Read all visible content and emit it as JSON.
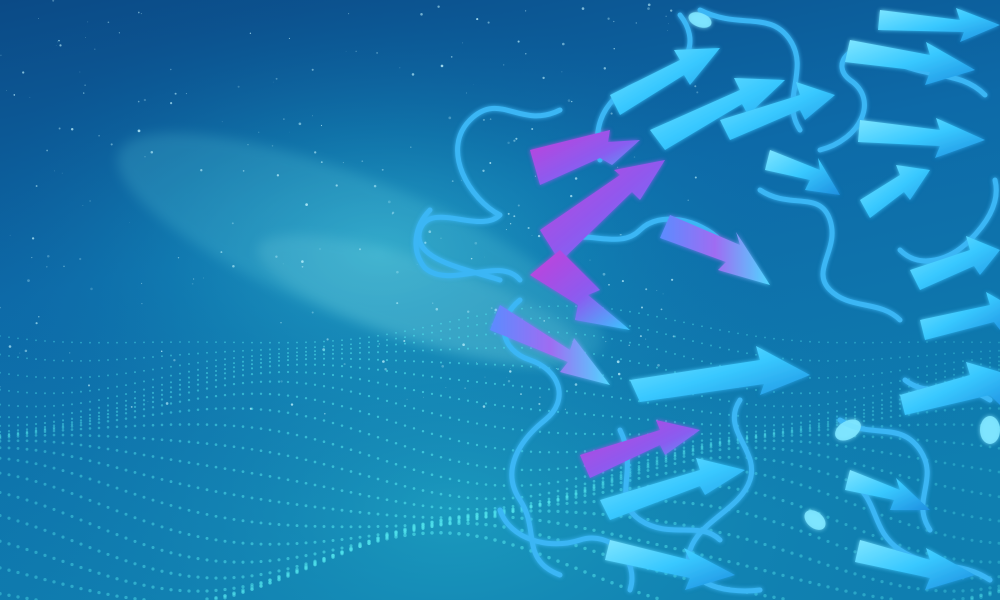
{
  "scene": {
    "subject": "protein-ribbon-structure",
    "background": "starfield-with-particle-waves",
    "colors": {
      "deep_blue": "#0b3f7a",
      "mid_blue": "#0d6aa8",
      "teal": "#1fb3c9",
      "cyan_ribbon": "#38c8ff",
      "light_cyan": "#7fe6ff",
      "violet": "#8a5cf0",
      "magenta": "#c63fd8"
    }
  }
}
